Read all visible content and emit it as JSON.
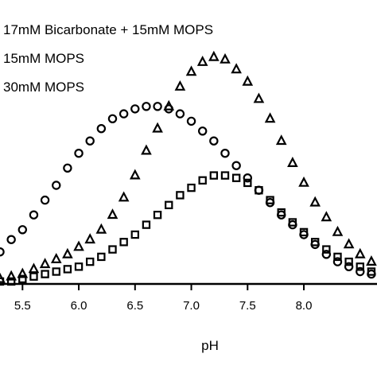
{
  "chart_data": {
    "type": "scatter",
    "xlabel": "pH",
    "ylabel": "",
    "xlim": [
      5.3,
      8.65
    ],
    "ylim": [
      0,
      1.0
    ],
    "x_ticks": [
      "5.5",
      "6.0",
      "6.5",
      "7.0",
      "7.5",
      "8.0"
    ],
    "x_tick_values": [
      5.5,
      6.0,
      6.5,
      7.0,
      7.5,
      8.0
    ],
    "legend_position": "top-left",
    "series": [
      {
        "name": "17mM Bicarbonate + 15mM MOPS",
        "marker": "triangle",
        "x": [
          5.3,
          5.4,
          5.5,
          5.6,
          5.7,
          5.8,
          5.9,
          6.0,
          6.1,
          6.2,
          6.3,
          6.4,
          6.5,
          6.6,
          6.7,
          6.8,
          6.9,
          7.0,
          7.1,
          7.2,
          7.3,
          7.4,
          7.5,
          7.6,
          7.7,
          7.8,
          7.9,
          8.0,
          8.1,
          8.2,
          8.3,
          8.4,
          8.5,
          8.6
        ],
        "y": [
          0.02,
          0.03,
          0.04,
          0.06,
          0.08,
          0.1,
          0.12,
          0.15,
          0.18,
          0.22,
          0.28,
          0.35,
          0.44,
          0.54,
          0.63,
          0.72,
          0.8,
          0.86,
          0.9,
          0.92,
          0.91,
          0.87,
          0.82,
          0.75,
          0.67,
          0.58,
          0.49,
          0.41,
          0.33,
          0.27,
          0.21,
          0.16,
          0.12,
          0.09
        ]
      },
      {
        "name": "15mM MOPS",
        "marker": "circle",
        "x": [
          5.3,
          5.4,
          5.5,
          5.6,
          5.7,
          5.8,
          5.9,
          6.0,
          6.1,
          6.2,
          6.3,
          6.4,
          6.5,
          6.6,
          6.7,
          6.8,
          6.9,
          7.0,
          7.1,
          7.2,
          7.3,
          7.4,
          7.5,
          7.6,
          7.7,
          7.8,
          7.9,
          8.0,
          8.1,
          8.2,
          8.3,
          8.4,
          8.5,
          8.6
        ],
        "y": [
          0.13,
          0.18,
          0.22,
          0.28,
          0.34,
          0.4,
          0.47,
          0.53,
          0.58,
          0.63,
          0.67,
          0.69,
          0.71,
          0.72,
          0.72,
          0.71,
          0.69,
          0.66,
          0.62,
          0.58,
          0.53,
          0.48,
          0.43,
          0.38,
          0.33,
          0.28,
          0.24,
          0.2,
          0.16,
          0.12,
          0.09,
          0.07,
          0.05,
          0.04
        ]
      },
      {
        "name": "30mM MOPS",
        "marker": "square",
        "x": [
          5.3,
          5.4,
          5.5,
          5.6,
          5.7,
          5.8,
          5.9,
          6.0,
          6.1,
          6.2,
          6.3,
          6.4,
          6.5,
          6.6,
          6.7,
          6.8,
          6.9,
          7.0,
          7.1,
          7.2,
          7.3,
          7.4,
          7.5,
          7.6,
          7.7,
          7.8,
          7.9,
          8.0,
          8.1,
          8.2,
          8.3,
          8.4,
          8.5,
          8.6
        ],
        "y": [
          0.01,
          0.01,
          0.02,
          0.03,
          0.04,
          0.05,
          0.06,
          0.07,
          0.09,
          0.11,
          0.14,
          0.17,
          0.2,
          0.24,
          0.28,
          0.32,
          0.36,
          0.39,
          0.42,
          0.44,
          0.44,
          0.43,
          0.41,
          0.38,
          0.34,
          0.29,
          0.25,
          0.21,
          0.17,
          0.14,
          0.11,
          0.09,
          0.07,
          0.05
        ]
      }
    ]
  }
}
